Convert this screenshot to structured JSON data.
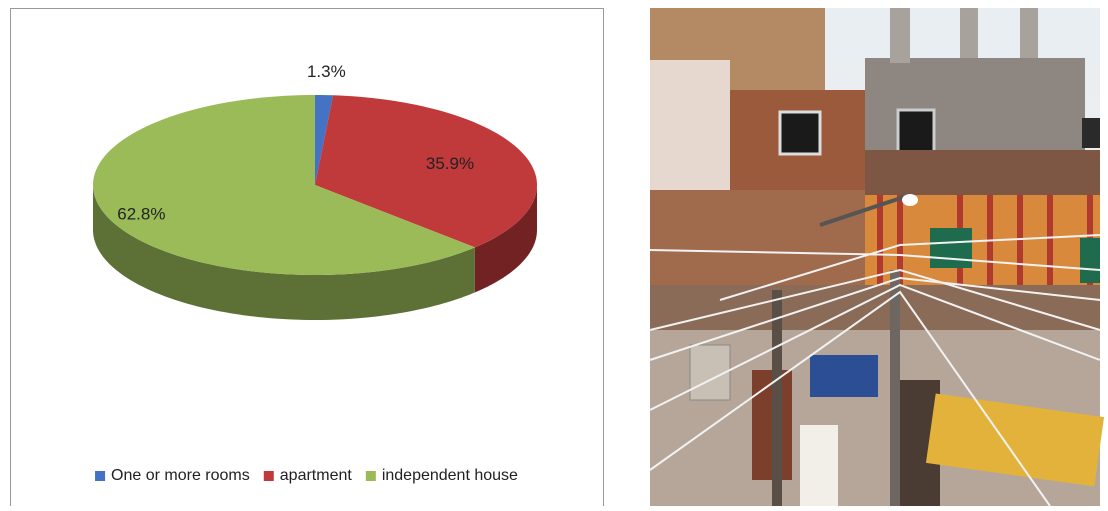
{
  "chart_data": {
    "type": "pie",
    "categories": [
      "One or more rooms",
      "apartment",
      "independent house"
    ],
    "values": [
      1.3,
      35.9,
      62.8
    ],
    "value_labels": [
      "1.3%",
      "35.9%",
      "62.8%"
    ],
    "colors": [
      "#4472c4",
      "#c0393b",
      "#9bbb59"
    ],
    "legend": "bottom"
  }
}
